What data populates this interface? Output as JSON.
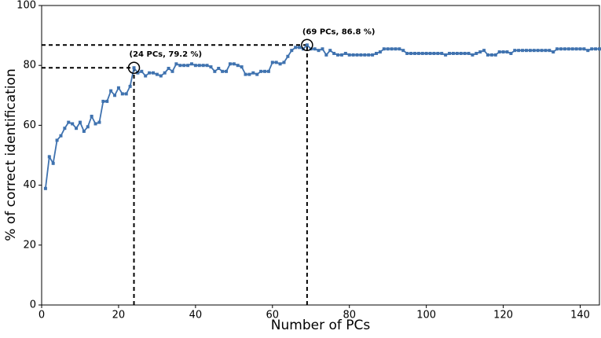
{
  "chart_data": {
    "type": "line",
    "xlabel": "Number of PCs",
    "ylabel": "% of correct identification",
    "xlim": [
      0,
      145
    ],
    "ylim": [
      0,
      100
    ],
    "xticks": [
      0,
      20,
      40,
      60,
      80,
      100,
      120,
      140
    ],
    "yticks": [
      0,
      20,
      40,
      60,
      80,
      100
    ],
    "x": [
      1,
      2,
      3,
      4,
      5,
      6,
      7,
      8,
      9,
      10,
      11,
      12,
      13,
      14,
      15,
      16,
      17,
      18,
      19,
      20,
      21,
      22,
      23,
      24,
      25,
      26,
      27,
      28,
      29,
      30,
      31,
      32,
      33,
      34,
      35,
      36,
      37,
      38,
      39,
      40,
      41,
      42,
      43,
      44,
      45,
      46,
      47,
      48,
      49,
      50,
      51,
      52,
      53,
      54,
      55,
      56,
      57,
      58,
      59,
      60,
      61,
      62,
      63,
      64,
      65,
      66,
      67,
      68,
      69,
      70,
      71,
      72,
      73,
      74,
      75,
      76,
      77,
      78,
      79,
      80,
      81,
      82,
      83,
      84,
      85,
      86,
      87,
      88,
      89,
      90,
      91,
      92,
      93,
      94,
      95,
      96,
      97,
      98,
      99,
      100,
      101,
      102,
      103,
      104,
      105,
      106,
      107,
      108,
      109,
      110,
      111,
      112,
      113,
      114,
      115,
      116,
      117,
      118,
      119,
      120,
      121,
      122,
      123,
      124,
      125,
      126,
      127,
      128,
      129,
      130,
      131,
      132,
      133,
      134,
      135,
      136,
      137,
      138,
      139,
      140,
      141,
      142,
      143,
      144,
      145
    ],
    "series": [
      {
        "color": "#3f72af",
        "values": [
          38.9,
          49.5,
          47.3,
          55,
          56.5,
          59,
          61,
          60.5,
          59,
          61,
          58,
          59.5,
          63,
          60.5,
          61,
          68,
          68,
          71.5,
          70,
          72.5,
          70.5,
          70.5,
          73,
          79.2,
          77.5,
          78,
          76.5,
          77.5,
          77.5,
          77,
          76.5,
          77.5,
          79,
          78,
          80.5,
          80,
          80,
          80,
          80.5,
          80,
          80,
          80,
          80,
          79.5,
          78,
          79,
          78,
          78,
          80.5,
          80.5,
          80,
          79.5,
          77,
          77,
          77.5,
          77,
          78,
          78,
          78,
          81,
          81,
          80.5,
          81,
          83,
          85,
          86,
          86,
          85.5,
          86.8,
          85.5,
          85.5,
          85,
          85.5,
          83.5,
          85,
          84,
          83.5,
          83.5,
          84,
          83.5,
          83.5,
          83.5,
          83.5,
          83.5,
          83.5,
          83.5,
          84,
          84.5,
          85.5,
          85.5,
          85.5,
          85.5,
          85.5,
          85,
          84,
          84,
          84,
          84,
          84,
          84,
          84,
          84,
          84,
          84,
          83.5,
          84,
          84,
          84,
          84,
          84,
          84,
          83.5,
          84,
          84.5,
          85,
          83.5,
          83.5,
          83.5,
          84.5,
          84.5,
          84.5,
          84,
          85,
          85,
          85,
          85,
          85,
          85,
          85,
          85,
          85,
          85,
          84.5,
          85.5,
          85.5,
          85.5,
          85.5,
          85.5,
          85.5,
          85.5,
          85.5,
          85,
          85.5,
          85.5,
          85.5
        ]
      }
    ],
    "annotations": [
      {
        "x": 24,
        "y": 79.2,
        "text": "(24 PCs, 79.2 %)"
      },
      {
        "x": 69,
        "y": 86.8,
        "text": "(69 PCs, 86.8 %)"
      }
    ]
  }
}
